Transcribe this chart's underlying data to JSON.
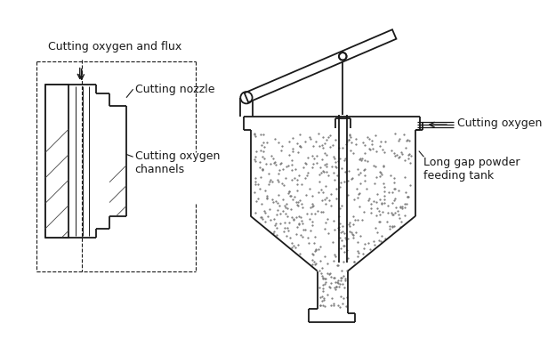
{
  "bg_color": "#ffffff",
  "line_color": "#1a1a1a",
  "lw": 1.3,
  "labels": {
    "cutting_oxygen_flux": "Cutting oxygen and flux",
    "cutting_nozzle": "Cutting nozzle",
    "cutting_oxygen_channels": "Cutting oxygen\nchannels",
    "cutting_oxygen": "Cutting oxygen",
    "long_gap_powder": "Long gap powder\nfeeding tank"
  }
}
